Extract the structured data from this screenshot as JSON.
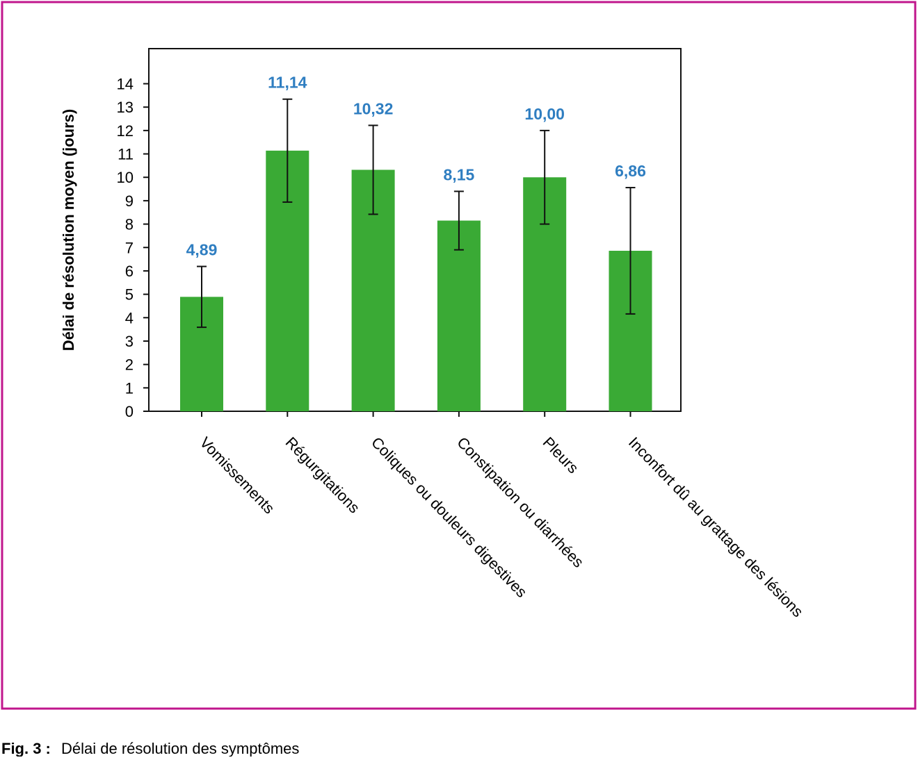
{
  "chart_data": {
    "type": "bar",
    "y_label": "Délai de résolution moyen (jours)",
    "categories": [
      "Vomissements",
      "Régurgitations",
      "Coliques ou douleurs digestives",
      "Constipation ou diarrhées",
      "Pleurs",
      "Inconfort dû au grattage des lésions"
    ],
    "values": [
      4.89,
      11.14,
      10.32,
      8.15,
      10.0,
      6.86
    ],
    "value_labels": [
      "4,89",
      "11,14",
      "10,32",
      "8,15",
      "10,00",
      "6,86"
    ],
    "errors": [
      1.3,
      2.2,
      1.9,
      1.25,
      2.0,
      2.7
    ],
    "color": "#3aaa35",
    "label_color": "#2f7ec1",
    "ylim": [
      0,
      15.5
    ],
    "yticks": [
      0,
      1,
      2,
      3,
      4,
      5,
      6,
      7,
      8,
      9,
      10,
      11,
      12,
      13,
      14
    ],
    "grid": false
  },
  "caption": {
    "label": "Fig. 3 :",
    "text": "Délai de résolution des symptômes"
  }
}
